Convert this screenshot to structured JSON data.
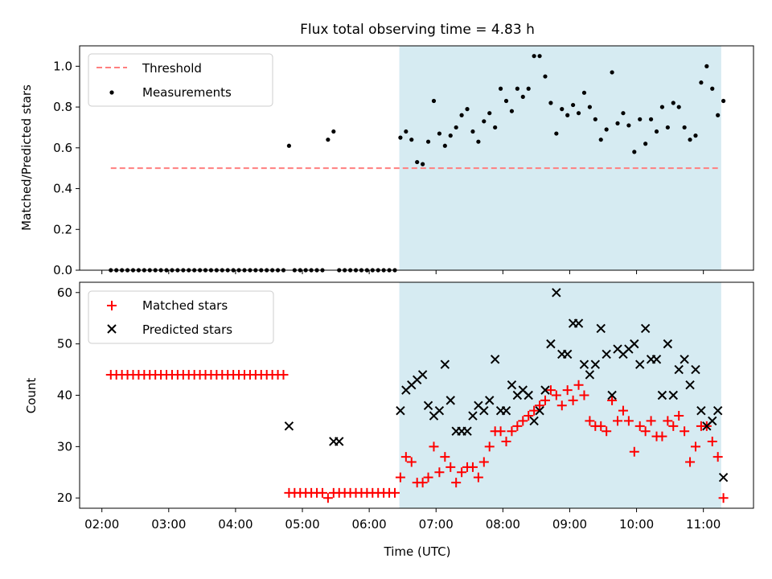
{
  "title": "Flux total observing time = 4.83 h",
  "xlabel": "Time (UTC)",
  "x_ticks": [
    "02:00",
    "03:00",
    "04:00",
    "05:00",
    "06:00",
    "07:00",
    "08:00",
    "09:00",
    "10:00",
    "11:00"
  ],
  "colors": {
    "threshold": "#ff7f7f",
    "matched": "#ff0000",
    "predicted": "#000000",
    "shade": "#add8e6",
    "measurement": "#000000"
  },
  "chart_data": [
    {
      "type": "scatter",
      "ylabel": "Matched/Predicted stars",
      "xlim": [
        "01:40",
        "11:45"
      ],
      "ylim": [
        0,
        1.1
      ],
      "y_ticks": [
        "0.0",
        "0.2",
        "0.4",
        "0.6",
        "0.8",
        "1.0"
      ],
      "shaded_region": {
        "x_from": "06:27",
        "x_to": "11:16"
      },
      "legend_position": "upper-left",
      "series": [
        {
          "name": "Threshold",
          "style": "dashed-line",
          "x": [
            "02:08",
            "11:13"
          ],
          "y": [
            0.5,
            0.5
          ]
        },
        {
          "name": "Measurements",
          "style": "dot",
          "x": [
            "02:08",
            "02:13",
            "02:18",
            "02:23",
            "02:28",
            "02:33",
            "02:38",
            "02:43",
            "02:48",
            "02:53",
            "02:58",
            "03:03",
            "03:08",
            "03:13",
            "03:18",
            "03:23",
            "03:28",
            "03:33",
            "03:38",
            "03:43",
            "03:48",
            "03:53",
            "03:58",
            "04:03",
            "04:08",
            "04:13",
            "04:18",
            "04:23",
            "04:28",
            "04:33",
            "04:38",
            "04:43",
            "04:48",
            "04:53",
            "04:58",
            "05:03",
            "05:08",
            "05:13",
            "05:18",
            "05:23",
            "05:28",
            "05:33",
            "05:38",
            "05:43",
            "05:48",
            "05:53",
            "05:58",
            "06:03",
            "06:08",
            "06:13",
            "06:18",
            "06:23",
            "06:28",
            "06:33",
            "06:38",
            "06:43",
            "06:48",
            "06:53",
            "06:58",
            "07:03",
            "07:08",
            "07:13",
            "07:18",
            "07:23",
            "07:28",
            "07:33",
            "07:38",
            "07:43",
            "07:48",
            "07:53",
            "07:58",
            "08:03",
            "08:08",
            "08:13",
            "08:18",
            "08:23",
            "08:28",
            "08:33",
            "08:38",
            "08:43",
            "08:48",
            "08:53",
            "08:58",
            "09:03",
            "09:08",
            "09:13",
            "09:18",
            "09:23",
            "09:28",
            "09:33",
            "09:38",
            "09:43",
            "09:48",
            "09:53",
            "09:58",
            "10:03",
            "10:08",
            "10:13",
            "10:18",
            "10:23",
            "10:28",
            "10:33",
            "10:38",
            "10:43",
            "10:48",
            "10:53",
            "10:58",
            "11:03",
            "11:08",
            "11:13",
            "11:18"
          ],
          "y": [
            0,
            0,
            0,
            0,
            0,
            0,
            0,
            0,
            0,
            0,
            0,
            0,
            0,
            0,
            0,
            0,
            0,
            0,
            0,
            0,
            0,
            0,
            0,
            0,
            0,
            0,
            0,
            0,
            0,
            0,
            0,
            0,
            0.61,
            0,
            0,
            0,
            0,
            0,
            0,
            0.64,
            0.68,
            0,
            0,
            0,
            0,
            0,
            0,
            0,
            0,
            0,
            0,
            0,
            0.65,
            0.68,
            0.64,
            0.53,
            0.52,
            0.63,
            0.83,
            0.67,
            0.61,
            0.66,
            0.7,
            0.76,
            0.79,
            0.68,
            0.63,
            0.73,
            0.77,
            0.7,
            0.89,
            0.83,
            0.78,
            0.89,
            0.85,
            0.89,
            1.05,
            1.05,
            0.95,
            0.82,
            0.67,
            0.79,
            0.76,
            0.81,
            0.77,
            0.87,
            0.8,
            0.74,
            0.64,
            0.69,
            0.97,
            0.72,
            0.77,
            0.71,
            0.58,
            0.74,
            0.62,
            0.74,
            0.68,
            0.8,
            0.7,
            0.82,
            0.8,
            0.7,
            0.64,
            0.66,
            0.92,
            1.0,
            0.89,
            0.76,
            0.83
          ]
        }
      ]
    },
    {
      "type": "scatter",
      "ylabel": "Count",
      "xlabel": "Time (UTC)",
      "xlim": [
        "01:40",
        "11:45"
      ],
      "ylim": [
        18,
        62
      ],
      "y_ticks": [
        "20",
        "30",
        "40",
        "50",
        "60"
      ],
      "shaded_region": {
        "x_from": "06:27",
        "x_to": "11:16"
      },
      "legend_position": "upper-left",
      "series": [
        {
          "name": "Matched stars",
          "marker": "plus",
          "x": [
            "02:08",
            "02:13",
            "02:18",
            "02:23",
            "02:28",
            "02:33",
            "02:38",
            "02:43",
            "02:48",
            "02:53",
            "02:58",
            "03:03",
            "03:08",
            "03:13",
            "03:18",
            "03:23",
            "03:28",
            "03:33",
            "03:38",
            "03:43",
            "03:48",
            "03:53",
            "03:58",
            "04:03",
            "04:08",
            "04:13",
            "04:18",
            "04:23",
            "04:28",
            "04:33",
            "04:38",
            "04:43",
            "04:48",
            "04:53",
            "04:58",
            "05:03",
            "05:08",
            "05:13",
            "05:18",
            "05:23",
            "05:28",
            "05:33",
            "05:38",
            "05:43",
            "05:48",
            "05:53",
            "05:58",
            "06:03",
            "06:08",
            "06:13",
            "06:18",
            "06:23",
            "06:28",
            "06:33",
            "06:38",
            "06:43",
            "06:48",
            "06:53",
            "06:58",
            "07:03",
            "07:08",
            "07:13",
            "07:18",
            "07:23",
            "07:28",
            "07:33",
            "07:38",
            "07:43",
            "07:48",
            "07:53",
            "07:58",
            "08:03",
            "08:08",
            "08:13",
            "08:18",
            "08:23",
            "08:28",
            "08:33",
            "08:38",
            "08:43",
            "08:48",
            "08:53",
            "08:58",
            "09:03",
            "09:08",
            "09:13",
            "09:18",
            "09:23",
            "09:28",
            "09:33",
            "09:38",
            "09:43",
            "09:48",
            "09:53",
            "09:58",
            "10:03",
            "10:08",
            "10:13",
            "10:18",
            "10:23",
            "10:28",
            "10:33",
            "10:38",
            "10:43",
            "10:48",
            "10:53",
            "10:58",
            "11:03",
            "11:08",
            "11:13",
            "11:18"
          ],
          "y": [
            44,
            44,
            44,
            44,
            44,
            44,
            44,
            44,
            44,
            44,
            44,
            44,
            44,
            44,
            44,
            44,
            44,
            44,
            44,
            44,
            44,
            44,
            44,
            44,
            44,
            44,
            44,
            44,
            44,
            44,
            44,
            44,
            21,
            21,
            21,
            21,
            21,
            21,
            21,
            20,
            21,
            21,
            21,
            21,
            21,
            21,
            21,
            21,
            21,
            21,
            21,
            21,
            24,
            28,
            27,
            23,
            23,
            24,
            30,
            25,
            28,
            26,
            23,
            25,
            26,
            26,
            24,
            27,
            30,
            33,
            33,
            31,
            33,
            34,
            35,
            36,
            37,
            38,
            39,
            41,
            40,
            38,
            41,
            39,
            42,
            40,
            35,
            34,
            34,
            33,
            39,
            35,
            37,
            35,
            29,
            34,
            33,
            35,
            32,
            32,
            35,
            34,
            36,
            33,
            27,
            30,
            34,
            34,
            31,
            28,
            20
          ]
        },
        {
          "name": "Predicted stars",
          "marker": "x",
          "x": [
            "04:48",
            "05:28",
            "05:33",
            "06:28",
            "06:33",
            "06:38",
            "06:43",
            "06:48",
            "06:53",
            "06:58",
            "07:03",
            "07:08",
            "07:13",
            "07:18",
            "07:23",
            "07:28",
            "07:33",
            "07:38",
            "07:43",
            "07:48",
            "07:53",
            "07:58",
            "08:03",
            "08:08",
            "08:13",
            "08:18",
            "08:23",
            "08:28",
            "08:33",
            "08:38",
            "08:43",
            "08:48",
            "08:53",
            "08:58",
            "09:03",
            "09:08",
            "09:13",
            "09:18",
            "09:23",
            "09:28",
            "09:33",
            "09:38",
            "09:43",
            "09:48",
            "09:53",
            "09:58",
            "10:03",
            "10:08",
            "10:13",
            "10:18",
            "10:23",
            "10:28",
            "10:33",
            "10:38",
            "10:43",
            "10:48",
            "10:53",
            "10:58",
            "11:03",
            "11:08",
            "11:13",
            "11:18"
          ],
          "y": [
            34,
            31,
            31,
            37,
            41,
            42,
            43,
            44,
            38,
            36,
            37,
            46,
            39,
            33,
            33,
            33,
            36,
            38,
            37,
            39,
            47,
            37,
            37,
            42,
            40,
            41,
            40,
            35,
            37,
            41,
            50,
            60,
            48,
            48,
            54,
            54,
            46,
            44,
            46,
            53,
            48,
            40,
            49,
            48,
            49,
            50,
            46,
            53,
            47,
            47,
            40,
            50,
            40,
            45,
            47,
            42,
            45,
            37,
            34,
            35,
            37,
            24
          ]
        }
      ]
    }
  ]
}
